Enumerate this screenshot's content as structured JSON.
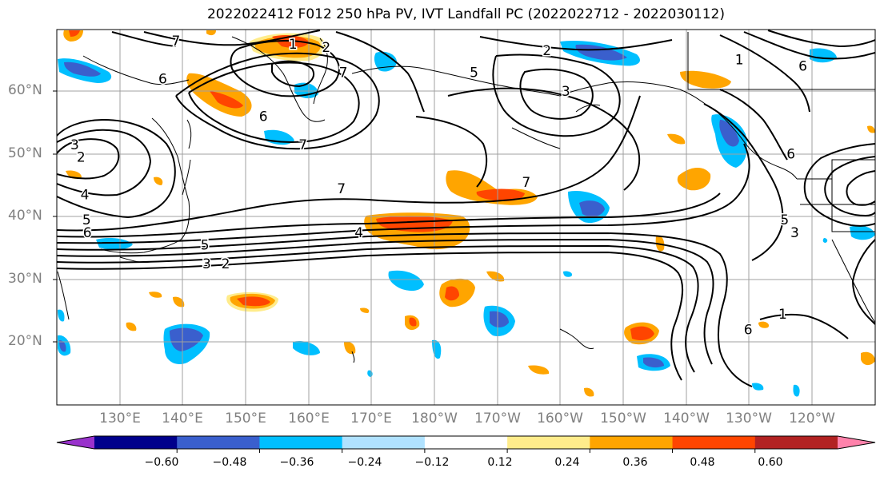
{
  "title": "2022022412 F012 250 hPa PV, IVT Landfall PC (2022022712 - 2022030112)",
  "lat_labels": [
    "60°N",
    "50°N",
    "40°N",
    "30°N",
    "20°N"
  ],
  "lon_labels": [
    "130°E",
    "140°E",
    "150°E",
    "160°E",
    "170°E",
    "180°W",
    "170°W",
    "160°W",
    "150°W",
    "140°W",
    "130°W",
    "120°W"
  ],
  "colorbar": {
    "ticks": [
      "−0.60",
      "−0.48",
      "−0.36",
      "−0.24",
      "−0.12",
      "0.12",
      "0.24",
      "0.36",
      "0.48",
      "0.60"
    ],
    "colors": [
      "#9932cc",
      "#00008b",
      "#3a5fcd",
      "#00bfff",
      "#b0e2ff",
      "#ffffff",
      "#ffec8b",
      "#ffa500",
      "#ff4500",
      "#b22222",
      "#ff82ab"
    ]
  },
  "contour_labels": [
    {
      "text": "7",
      "lon": 138.9,
      "lat": 68.0
    },
    {
      "text": "6",
      "lon": 136.8,
      "lat": 62.0
    },
    {
      "text": "1",
      "lon": 157.5,
      "lat": 67.5
    },
    {
      "text": "2",
      "lon": 162.8,
      "lat": 67.0
    },
    {
      "text": "7",
      "lon": 165.5,
      "lat": 63.0
    },
    {
      "text": "6",
      "lon": 152.8,
      "lat": 56.0
    },
    {
      "text": "7",
      "lon": 159.1,
      "lat": 51.5
    },
    {
      "text": "5",
      "lon": 186.3,
      "lat": 63.0
    },
    {
      "text": "2",
      "lon": 197.9,
      "lat": 66.5
    },
    {
      "text": "3",
      "lon": 200.9,
      "lat": 60.0
    },
    {
      "text": "1",
      "lon": 228.5,
      "lat": 65.0
    },
    {
      "text": "6",
      "lon": 238.6,
      "lat": 64.0
    },
    {
      "text": "3",
      "lon": 122.8,
      "lat": 51.5
    },
    {
      "text": "2",
      "lon": 123.8,
      "lat": 49.5
    },
    {
      "text": "4",
      "lon": 124.4,
      "lat": 43.5
    },
    {
      "text": "5",
      "lon": 124.7,
      "lat": 39.5
    },
    {
      "text": "6",
      "lon": 124.8,
      "lat": 37.5
    },
    {
      "text": "7",
      "lon": 165.2,
      "lat": 44.5
    },
    {
      "text": "7",
      "lon": 194.6,
      "lat": 45.5
    },
    {
      "text": "4",
      "lon": 168.0,
      "lat": 37.5
    },
    {
      "text": "5",
      "lon": 143.5,
      "lat": 35.5
    },
    {
      "text": "3",
      "lon": 143.8,
      "lat": 32.5
    },
    {
      "text": "2",
      "lon": 146.8,
      "lat": 32.5
    },
    {
      "text": "6",
      "lon": 236.7,
      "lat": 50.0
    },
    {
      "text": "5",
      "lon": 235.7,
      "lat": 39.5
    },
    {
      "text": "3",
      "lon": 237.3,
      "lat": 37.5
    },
    {
      "text": "6",
      "lon": 229.9,
      "lat": 22.0
    },
    {
      "text": "1",
      "lon": 235.4,
      "lat": 24.5
    }
  ]
}
